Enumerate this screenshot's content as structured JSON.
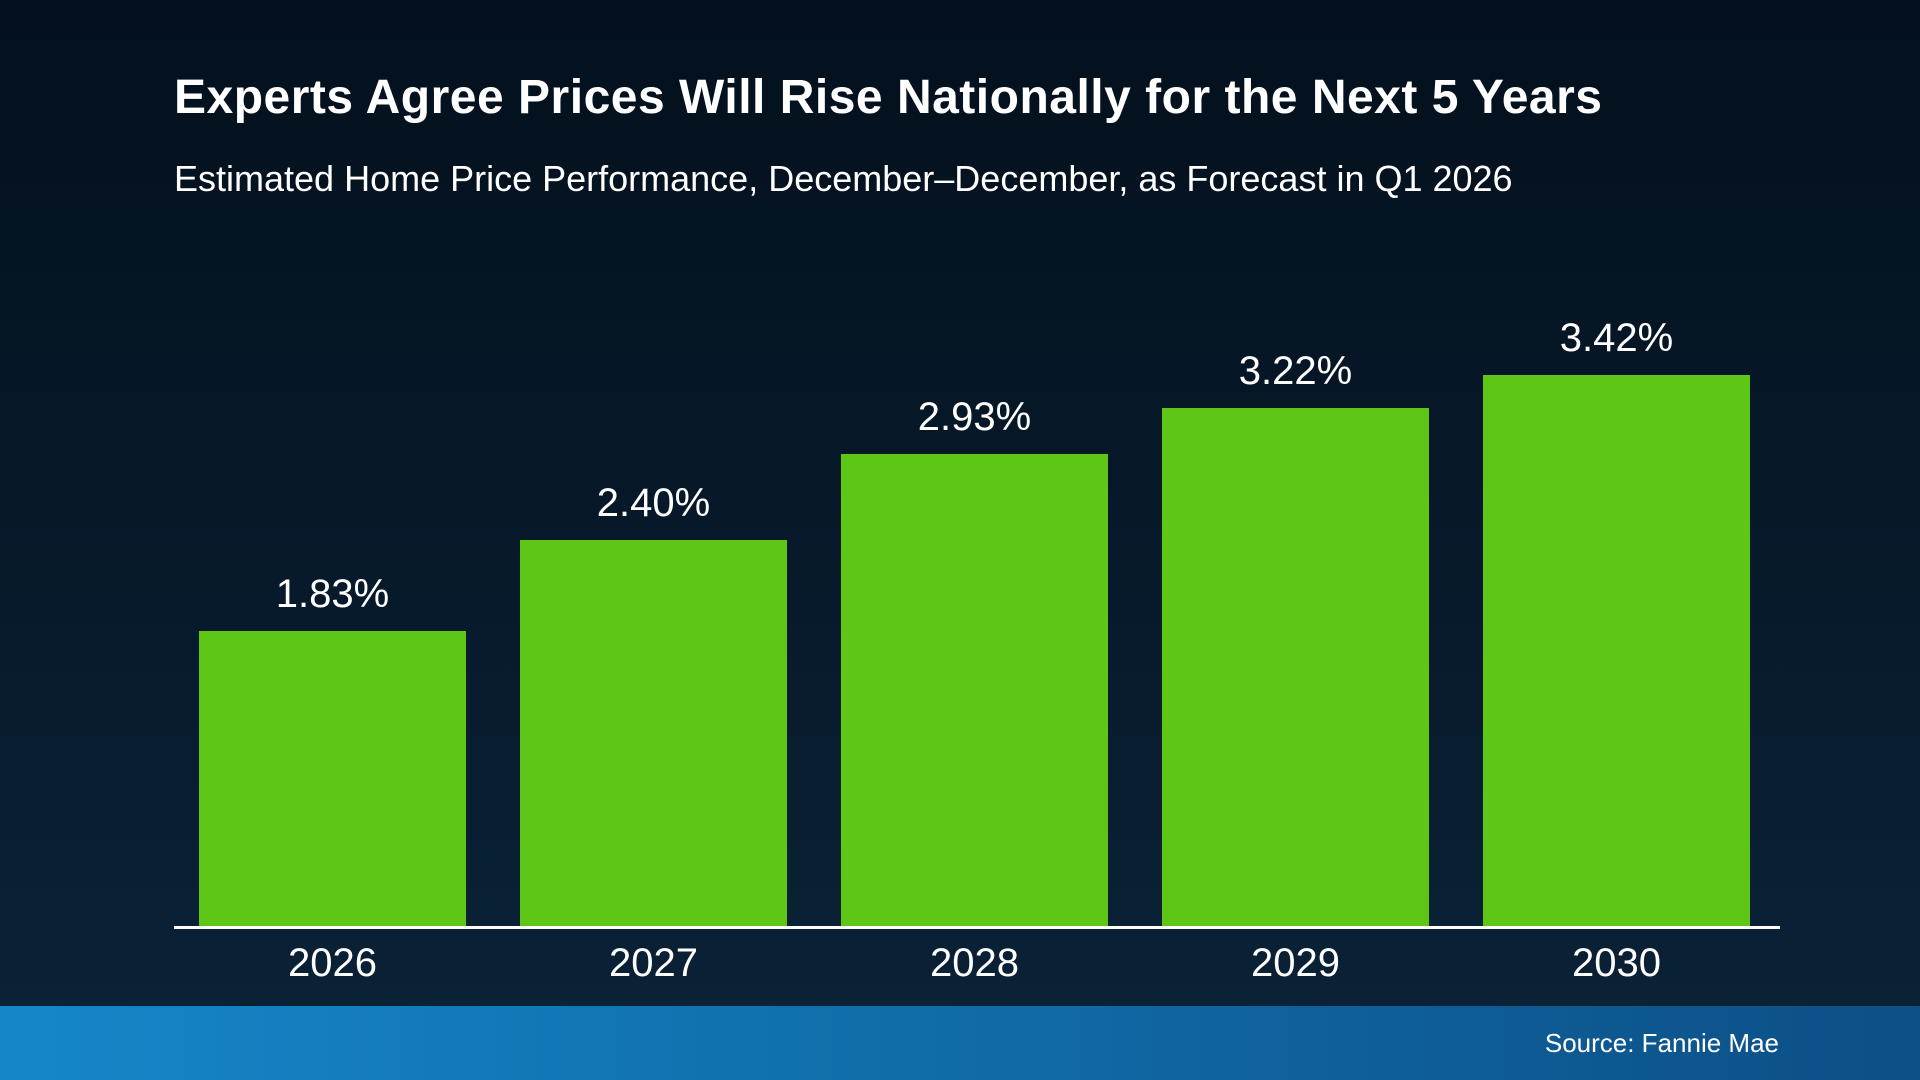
{
  "title": "Experts Agree Prices Will Rise Nationally for the Next 5 Years",
  "subtitle": "Estimated Home Price Performance, December–December, as Forecast in Q1 2026",
  "source": "Source: Fannie Mae",
  "colors": {
    "bar": "#5ec616",
    "background_top": "#04101d",
    "background_bottom": "#0b2338",
    "footer_left": "#1587c9",
    "footer_right": "#0c4f86",
    "axis": "#ffffff",
    "text": "#ffffff"
  },
  "chart_data": {
    "type": "bar",
    "categories": [
      "2026",
      "2027",
      "2028",
      "2029",
      "2030"
    ],
    "values": [
      1.83,
      2.4,
      2.93,
      3.22,
      3.42
    ],
    "labels": [
      "1.83%",
      "2.40%",
      "2.93%",
      "3.22%",
      "3.42%"
    ],
    "title": "Experts Agree Prices Will Rise Nationally for the Next 5 Years",
    "subtitle": "Estimated Home Price Performance, December–December, as Forecast in Q1 2026",
    "xlabel": "",
    "ylabel": "",
    "ylim": [
      0,
      3.6
    ],
    "grid": false,
    "legend": false,
    "data_labels": true,
    "source": "Source: Fannie Mae"
  }
}
